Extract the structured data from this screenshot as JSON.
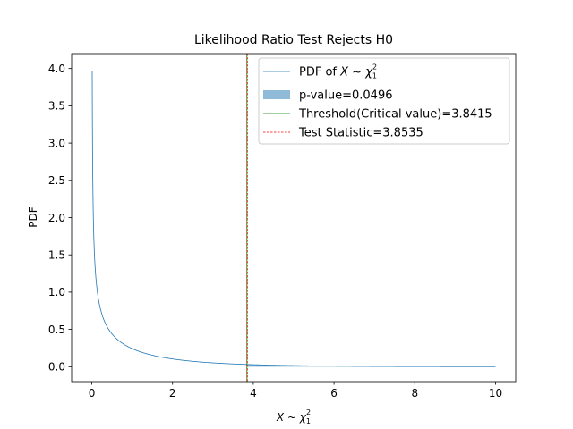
{
  "chart_data": {
    "type": "line",
    "title": "Likelihood Ratio Test Rejects H0",
    "xlabel": {
      "base": "X ~ χ",
      "sub": "1",
      "sup": "2"
    },
    "ylabel": "PDF",
    "xlim": [
      -0.5,
      10.5
    ],
    "ylim": [
      -0.2,
      4.2
    ],
    "xticks": [
      0,
      2,
      4,
      6,
      8,
      10
    ],
    "yticks": [
      0.0,
      0.5,
      1.0,
      1.5,
      2.0,
      2.5,
      3.0,
      3.5,
      4.0
    ],
    "xtick_labels": [
      "0",
      "2",
      "4",
      "6",
      "8",
      "10"
    ],
    "ytick_labels": [
      "0.0",
      "0.5",
      "1.0",
      "1.5",
      "2.0",
      "2.5",
      "3.0",
      "3.5",
      "4.0"
    ],
    "grid": false,
    "legend_position": "top-right",
    "series": [
      {
        "name": "PDF of X ~ χ₁²",
        "kind": "pdf",
        "degrees_of_freedom": 1,
        "x_range": [
          0.01,
          10
        ],
        "color": "#1f77b4"
      },
      {
        "name": "p-value=0.0496",
        "kind": "shaded_tail",
        "x_from": 3.8535,
        "x_to": 10,
        "value": 0.0496,
        "color": "#1f77b4"
      },
      {
        "name": "Threshold(Critical value)=3.8415",
        "kind": "vline",
        "x": 3.8415,
        "color": "#008000",
        "style": "solid"
      },
      {
        "name": "Test Statistic=3.8535",
        "kind": "vline",
        "x": 3.8535,
        "color": "#ff0000",
        "style": "dashed"
      }
    ],
    "legend": [
      {
        "marker": "line",
        "color": "#1f77b4",
        "prefix": "PDF of ",
        "math": {
          "base": "X ~ χ",
          "sub": "1",
          "sup": "2"
        }
      },
      {
        "marker": "patch",
        "color": "#1f77b4",
        "text": "p-value=0.0496"
      },
      {
        "marker": "line",
        "color": "#008000",
        "text": "Threshold(Critical value)=3.8415"
      },
      {
        "marker": "dashed",
        "color": "#ff0000",
        "text": "Test Statistic=3.8535"
      }
    ]
  }
}
